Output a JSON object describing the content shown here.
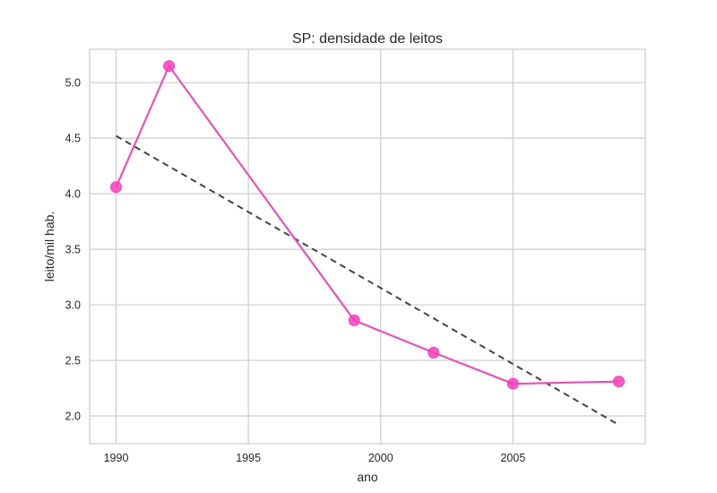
{
  "chart_data": {
    "type": "line",
    "title": "SP: densidade de leitos",
    "xlabel": "ano",
    "ylabel": "leito/mil hab.",
    "xlim": [
      1989,
      2010
    ],
    "ylim": [
      1.75,
      5.3
    ],
    "xticks": [
      1990,
      1995,
      2000,
      2005
    ],
    "xtick_labels": [
      "1990",
      "1995",
      "2000",
      "2005"
    ],
    "yticks": [
      2.0,
      2.5,
      3.0,
      3.5,
      4.0,
      4.5,
      5.0
    ],
    "ytick_labels": [
      "2.0",
      "2.5",
      "3.0",
      "3.5",
      "4.0",
      "4.5",
      "5.0"
    ],
    "grid": true,
    "series": [
      {
        "style": "line-markers",
        "color": "#ff3dbb",
        "x": [
          1990,
          1992,
          1999,
          2002,
          2005,
          2009
        ],
        "y": [
          4.06,
          5.15,
          2.86,
          2.57,
          2.29,
          2.31
        ]
      },
      {
        "style": "dashed-trend",
        "color": "#444444",
        "x": [
          1990,
          2009
        ],
        "y": [
          4.52,
          1.92
        ]
      }
    ]
  }
}
